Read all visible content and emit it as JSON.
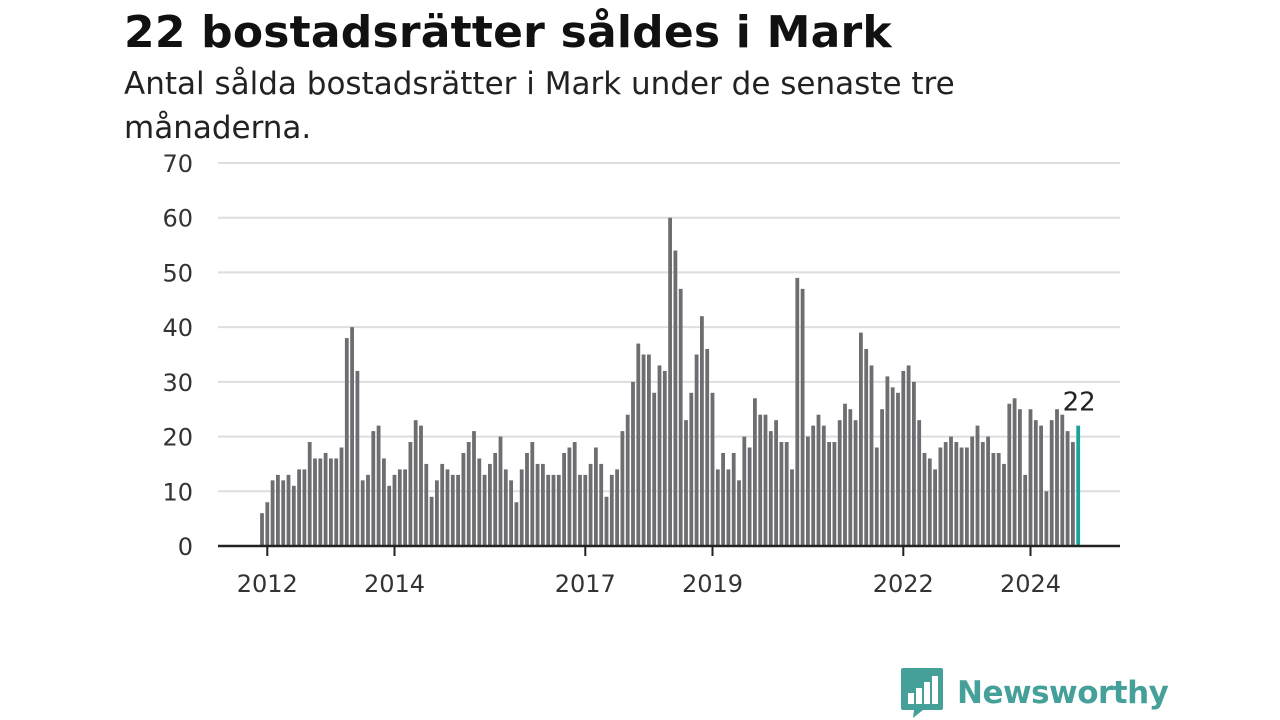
{
  "title": "22 bostadsrätter såldes i Mark",
  "subtitle": "Antal sålda bostadsrätter i Mark under de senaste tre månaderna.",
  "brand": {
    "name": "Newsworthy",
    "icon": "newsworthy-logo-icon",
    "color": "#46a09a"
  },
  "colors": {
    "bar": "#6e6d72",
    "highlight": "#1aa39a",
    "grid": "#dedede",
    "axis": "#222222"
  },
  "chart_data": {
    "type": "bar",
    "x_start": "2011-12",
    "x_end": "2024-09",
    "values": [
      6,
      8,
      12,
      13,
      12,
      13,
      11,
      14,
      14,
      19,
      16,
      16,
      17,
      16,
      16,
      18,
      38,
      40,
      32,
      12,
      13,
      21,
      22,
      16,
      11,
      13,
      14,
      14,
      19,
      23,
      22,
      15,
      9,
      12,
      15,
      14,
      13,
      13,
      17,
      19,
      21,
      16,
      13,
      15,
      17,
      20,
      14,
      12,
      8,
      14,
      17,
      19,
      15,
      15,
      13,
      13,
      13,
      17,
      18,
      19,
      13,
      13,
      15,
      18,
      15,
      9,
      13,
      14,
      21,
      24,
      30,
      37,
      35,
      35,
      28,
      33,
      32,
      60,
      54,
      47,
      23,
      28,
      35,
      42,
      36,
      28,
      14,
      17,
      14,
      17,
      12,
      20,
      18,
      27,
      24,
      24,
      21,
      23,
      19,
      19,
      14,
      49,
      47,
      20,
      22,
      24,
      22,
      19,
      19,
      23,
      26,
      25,
      23,
      39,
      36,
      33,
      18,
      25,
      31,
      29,
      28,
      32,
      33,
      30,
      23,
      17,
      16,
      14,
      18,
      19,
      20,
      19,
      18,
      18,
      20,
      22,
      19,
      20,
      17,
      17,
      15,
      26,
      27,
      25,
      13,
      25,
      23,
      22,
      10,
      23,
      25,
      24,
      21,
      19,
      22
    ],
    "highlight_last": true,
    "last_value_label": "22",
    "x_tick_labels": [
      "2012",
      "2014",
      "2017",
      "2019",
      "2022",
      "2024"
    ],
    "y_ticks": [
      0,
      10,
      20,
      30,
      40,
      50,
      60,
      70
    ],
    "ylim": [
      0,
      70
    ],
    "grid": true,
    "xlabel": "",
    "ylabel": ""
  }
}
